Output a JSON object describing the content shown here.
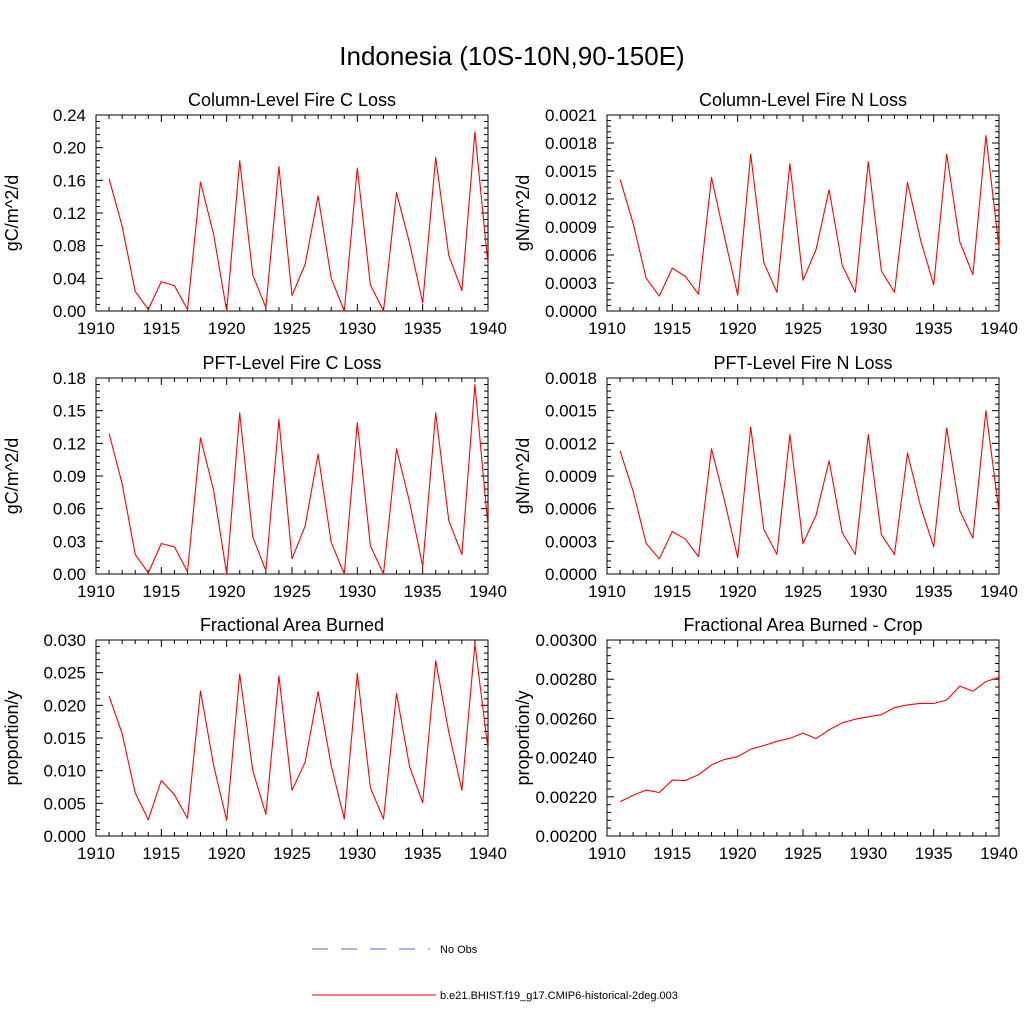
{
  "figure": {
    "title": "Indonesia (10S-10N,90-150E)",
    "line_color": "#ff0000",
    "obs_color": "#4a6fd0"
  },
  "legend": {
    "placement": "bottom-center",
    "obs_label": "No Obs",
    "model_label": "b.e21.BHIST.f19_g17.CMIP6-historical-2deg.003"
  },
  "chart_data": [
    {
      "type": "line",
      "title": "Column-Level Fire C Loss",
      "ylabel": "gC/m^2/d",
      "xlim": [
        1910,
        1940
      ],
      "ylim": [
        0,
        0.24
      ],
      "x_ticks": [
        1910,
        1915,
        1920,
        1925,
        1930,
        1935,
        1940
      ],
      "x_tick_labels": [
        "1910",
        "1915",
        "1920",
        "1925",
        "1930",
        "1935",
        "1940"
      ],
      "y_ticks": [
        0,
        0.04,
        0.08,
        0.12,
        0.16,
        0.2,
        0.24
      ],
      "y_tick_labels": [
        "0.00",
        "0.04",
        "0.08",
        "0.12",
        "0.16",
        "0.20",
        "0.24"
      ],
      "grid": false,
      "x": [
        1911,
        1912,
        1913,
        1914,
        1915,
        1916,
        1917,
        1918,
        1919,
        1920,
        1921,
        1922,
        1923,
        1924,
        1925,
        1926,
        1927,
        1928,
        1929,
        1930,
        1931,
        1932,
        1933,
        1934,
        1935,
        1936,
        1937,
        1938,
        1939,
        1940
      ],
      "series": [
        {
          "values": [
            0.162,
            0.104,
            0.024,
            0.002,
            0.036,
            0.031,
            0.002,
            0.158,
            0.094,
            0.0,
            0.184,
            0.044,
            0.004,
            0.177,
            0.019,
            0.057,
            0.141,
            0.04,
            0.0,
            0.175,
            0.032,
            0.0,
            0.145,
            0.083,
            0.01,
            0.188,
            0.068,
            0.025,
            0.219,
            0.057
          ]
        }
      ]
    },
    {
      "type": "line",
      "title": "Column-Level Fire N Loss",
      "ylabel": "gN/m^2/d",
      "xlim": [
        1910,
        1940
      ],
      "ylim": [
        0,
        0.0021
      ],
      "x_ticks": [
        1910,
        1915,
        1920,
        1925,
        1930,
        1935,
        1940
      ],
      "x_tick_labels": [
        "1910",
        "1915",
        "1920",
        "1925",
        "1930",
        "1935",
        "1940"
      ],
      "y_ticks": [
        0,
        0.0003,
        0.0006,
        0.0009,
        0.0012,
        0.0015,
        0.0018,
        0.0021
      ],
      "y_tick_labels": [
        "0.0000",
        "0.0003",
        "0.0006",
        "0.0009",
        "0.0012",
        "0.0015",
        "0.0018",
        "0.0021"
      ],
      "grid": false,
      "x": [
        1911,
        1912,
        1913,
        1914,
        1915,
        1916,
        1917,
        1918,
        1919,
        1920,
        1921,
        1922,
        1923,
        1924,
        1925,
        1926,
        1927,
        1928,
        1929,
        1930,
        1931,
        1932,
        1933,
        1934,
        1935,
        1936,
        1937,
        1938,
        1939,
        1940
      ],
      "series": [
        {
          "values": [
            0.00141,
            0.00094,
            0.00035,
            0.00016,
            0.00046,
            0.00037,
            0.00018,
            0.00143,
            0.00079,
            0.00017,
            0.00168,
            0.00052,
            0.0002,
            0.00158,
            0.00033,
            0.00066,
            0.0013,
            0.00049,
            0.0002,
            0.0016,
            0.00043,
            0.0002,
            0.00138,
            0.00076,
            0.00028,
            0.00168,
            0.00074,
            0.00039,
            0.00188,
            0.00068
          ]
        }
      ]
    },
    {
      "type": "line",
      "title": "PFT-Level Fire C Loss",
      "ylabel": "gC/m^2/d",
      "xlim": [
        1910,
        1940
      ],
      "ylim": [
        0,
        0.18
      ],
      "x_ticks": [
        1910,
        1915,
        1920,
        1925,
        1930,
        1935,
        1940
      ],
      "x_tick_labels": [
        "1910",
        "1915",
        "1920",
        "1925",
        "1930",
        "1935",
        "1940"
      ],
      "y_ticks": [
        0,
        0.03,
        0.06,
        0.09,
        0.12,
        0.15,
        0.18
      ],
      "y_tick_labels": [
        "0.00",
        "0.03",
        "0.06",
        "0.09",
        "0.12",
        "0.15",
        "0.18"
      ],
      "grid": false,
      "x": [
        1911,
        1912,
        1913,
        1914,
        1915,
        1916,
        1917,
        1918,
        1919,
        1920,
        1921,
        1922,
        1923,
        1924,
        1925,
        1926,
        1927,
        1928,
        1929,
        1930,
        1931,
        1932,
        1933,
        1934,
        1935,
        1936,
        1937,
        1938,
        1939,
        1940
      ],
      "series": [
        {
          "values": [
            0.129,
            0.083,
            0.018,
            0.001,
            0.028,
            0.025,
            0.002,
            0.125,
            0.077,
            0.0,
            0.148,
            0.034,
            0.003,
            0.142,
            0.014,
            0.044,
            0.11,
            0.029,
            0.0,
            0.139,
            0.026,
            0.0,
            0.115,
            0.066,
            0.007,
            0.148,
            0.049,
            0.018,
            0.174,
            0.044
          ]
        }
      ]
    },
    {
      "type": "line",
      "title": "PFT-Level Fire N Loss",
      "ylabel": "gN/m^2/d",
      "xlim": [
        1910,
        1940
      ],
      "ylim": [
        0,
        0.0018
      ],
      "x_ticks": [
        1910,
        1915,
        1920,
        1925,
        1930,
        1935,
        1940
      ],
      "x_tick_labels": [
        "1910",
        "1915",
        "1920",
        "1925",
        "1930",
        "1935",
        "1940"
      ],
      "y_ticks": [
        0,
        0.0003,
        0.0006,
        0.0009,
        0.0012,
        0.0015,
        0.0018
      ],
      "y_tick_labels": [
        "0.0000",
        "0.0003",
        "0.0006",
        "0.0009",
        "0.0012",
        "0.0015",
        "0.0018"
      ],
      "grid": false,
      "x": [
        1911,
        1912,
        1913,
        1914,
        1915,
        1916,
        1917,
        1918,
        1919,
        1920,
        1921,
        1922,
        1923,
        1924,
        1925,
        1926,
        1927,
        1928,
        1929,
        1930,
        1931,
        1932,
        1933,
        1934,
        1935,
        1936,
        1937,
        1938,
        1939,
        1940
      ],
      "series": [
        {
          "values": [
            0.00113,
            0.00076,
            0.00028,
            0.00014,
            0.00039,
            0.00032,
            0.00016,
            0.00115,
            0.00067,
            0.00015,
            0.00135,
            0.00041,
            0.00018,
            0.00128,
            0.00028,
            0.00054,
            0.00104,
            0.00038,
            0.00018,
            0.00128,
            0.00036,
            0.00018,
            0.00111,
            0.00062,
            0.00025,
            0.00134,
            0.00058,
            0.00033,
            0.0015,
            0.00057
          ]
        }
      ]
    },
    {
      "type": "line",
      "title": "Fractional Area Burned",
      "ylabel": "proportion/y",
      "xlim": [
        1910,
        1940
      ],
      "ylim": [
        0,
        0.03
      ],
      "x_ticks": [
        1910,
        1915,
        1920,
        1925,
        1930,
        1935,
        1940
      ],
      "x_tick_labels": [
        "1910",
        "1915",
        "1920",
        "1925",
        "1930",
        "1935",
        "1940"
      ],
      "y_ticks": [
        0,
        0.005,
        0.01,
        0.015,
        0.02,
        0.025,
        0.03
      ],
      "y_tick_labels": [
        "0.000",
        "0.005",
        "0.010",
        "0.015",
        "0.020",
        "0.025",
        "0.030"
      ],
      "grid": false,
      "x": [
        1911,
        1912,
        1913,
        1914,
        1915,
        1916,
        1917,
        1918,
        1919,
        1920,
        1921,
        1922,
        1923,
        1924,
        1925,
        1926,
        1927,
        1928,
        1929,
        1930,
        1931,
        1932,
        1933,
        1934,
        1935,
        1936,
        1937,
        1938,
        1939,
        1940
      ],
      "series": [
        {
          "values": [
            0.0214,
            0.0157,
            0.0066,
            0.0025,
            0.0085,
            0.0063,
            0.0027,
            0.0222,
            0.0108,
            0.0024,
            0.0248,
            0.01,
            0.0033,
            0.0245,
            0.007,
            0.0113,
            0.0221,
            0.0108,
            0.0026,
            0.0249,
            0.0074,
            0.0026,
            0.0218,
            0.0106,
            0.0051,
            0.0268,
            0.0159,
            0.007,
            0.0294,
            0.0133
          ]
        }
      ]
    },
    {
      "type": "line",
      "title": "Fractional Area Burned - Crop",
      "ylabel": "proportion/y",
      "xlim": [
        1910,
        1940
      ],
      "ylim": [
        0.002,
        0.003
      ],
      "x_ticks": [
        1910,
        1915,
        1920,
        1925,
        1930,
        1935,
        1940
      ],
      "x_tick_labels": [
        "1910",
        "1915",
        "1920",
        "1925",
        "1930",
        "1935",
        "1940"
      ],
      "y_ticks": [
        0.002,
        0.0022,
        0.0024,
        0.0026,
        0.0028,
        0.003
      ],
      "y_tick_labels": [
        "0.00200",
        "0.00220",
        "0.00240",
        "0.00260",
        "0.00280",
        "0.00300"
      ],
      "grid": false,
      "x": [
        1911,
        1912,
        1913,
        1914,
        1915,
        1916,
        1917,
        1918,
        1919,
        1920,
        1921,
        1922,
        1923,
        1924,
        1925,
        1926,
        1927,
        1928,
        1929,
        1930,
        1931,
        1932,
        1933,
        1934,
        1935,
        1936,
        1937,
        1938,
        1939,
        1940
      ],
      "series": [
        {
          "values": [
            0.002175,
            0.002208,
            0.002234,
            0.002222,
            0.002285,
            0.002283,
            0.002312,
            0.002363,
            0.002391,
            0.002405,
            0.002443,
            0.002461,
            0.002483,
            0.002498,
            0.002525,
            0.002497,
            0.002542,
            0.002577,
            0.002596,
            0.002608,
            0.002619,
            0.002655,
            0.002669,
            0.002677,
            0.002676,
            0.002694,
            0.002765,
            0.002739,
            0.002788,
            0.00281
          ]
        }
      ]
    }
  ]
}
